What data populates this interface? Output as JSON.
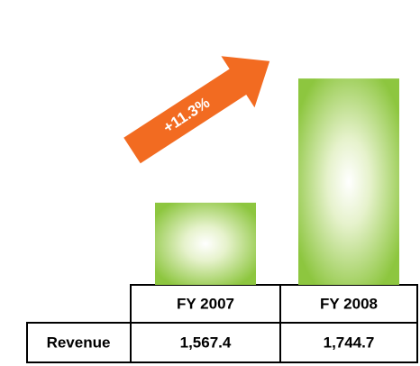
{
  "chart_data": {
    "type": "bar",
    "annotation": "+11.3%",
    "categories": [
      "FY 2007",
      "FY 2008"
    ],
    "row_label": "Revenue",
    "values": [
      1567.4,
      1744.7
    ],
    "value_labels": [
      "1,567.4",
      "1,744.7"
    ],
    "color": "#8dc63f",
    "ylim": [
      1450,
      1750
    ]
  }
}
